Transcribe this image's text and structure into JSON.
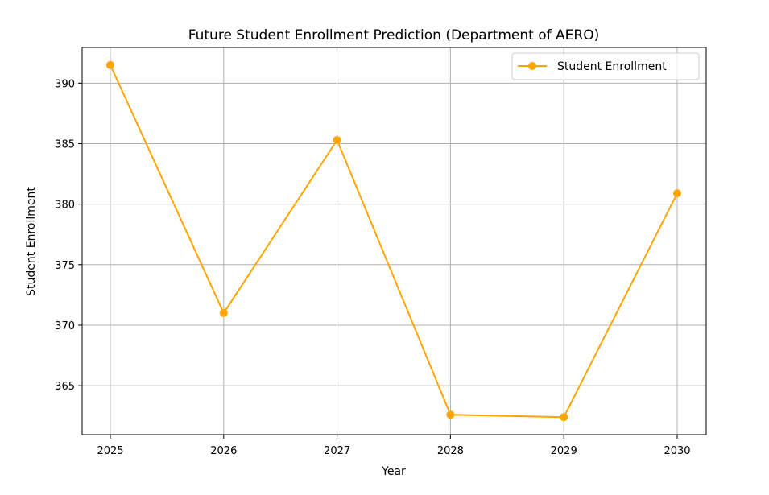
{
  "chart_data": {
    "type": "line",
    "title": "Future Student Enrollment Prediction (Department of AERO)",
    "xlabel": "Year",
    "ylabel": "Student Enrollment",
    "x": [
      "2025",
      "2026",
      "2027",
      "2028",
      "2029",
      "2030"
    ],
    "series": [
      {
        "name": "Student Enrollment",
        "values": [
          391.5,
          371.0,
          385.3,
          362.6,
          362.4,
          380.9
        ],
        "color": "#ffa500",
        "marker": "circle"
      }
    ],
    "yticks": [
      "365",
      "370",
      "375",
      "380",
      "385",
      "390"
    ],
    "ylim": [
      360.95,
      392.95
    ],
    "grid": true,
    "legend": "top-right"
  }
}
